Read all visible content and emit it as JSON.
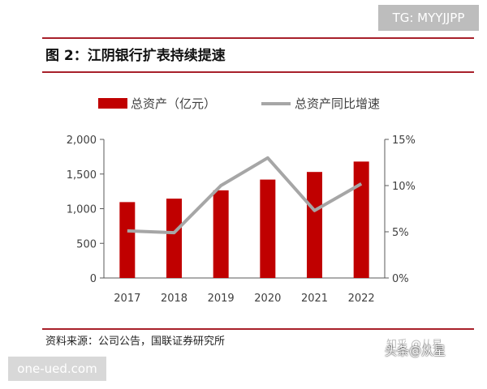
{
  "watermark_top": "TG: MYYJJPP",
  "watermark_bottom": "one-ued.com",
  "figure_title": "图 2：江阴银行扩表持续提速",
  "source_note": "资料来源：公司公告，国联证券研究所",
  "platform_watermark": {
    "text": "知乎 @从星",
    "brand": "头条@从星"
  },
  "colors": {
    "bar": "#c00000",
    "line": "#a6a6a6",
    "rule": "#a8202a",
    "axis": "#595959"
  },
  "chart_data": {
    "type": "bar",
    "categories": [
      "2017",
      "2018",
      "2019",
      "2020",
      "2021",
      "2022"
    ],
    "series": [
      {
        "name": "总资产（亿元）",
        "type": "bar",
        "axis": "left",
        "values": [
          1095,
          1145,
          1265,
          1420,
          1530,
          1680
        ]
      },
      {
        "name": "总资产同比增速",
        "type": "line",
        "axis": "right",
        "values": [
          5.1,
          4.9,
          10.0,
          13.0,
          7.3,
          10.2
        ]
      }
    ],
    "y_left": {
      "min": 0,
      "max": 2000,
      "ticks": [
        0,
        500,
        1000,
        1500,
        2000
      ],
      "tick_labels": [
        "0",
        "500",
        "1,000",
        "1,500",
        "2,000"
      ]
    },
    "y_right": {
      "min": 0,
      "max": 15,
      "ticks": [
        0,
        5,
        10,
        15
      ],
      "tick_labels": [
        "0%",
        "5%",
        "10%",
        "15%"
      ]
    },
    "legend": "top",
    "grid": false
  }
}
